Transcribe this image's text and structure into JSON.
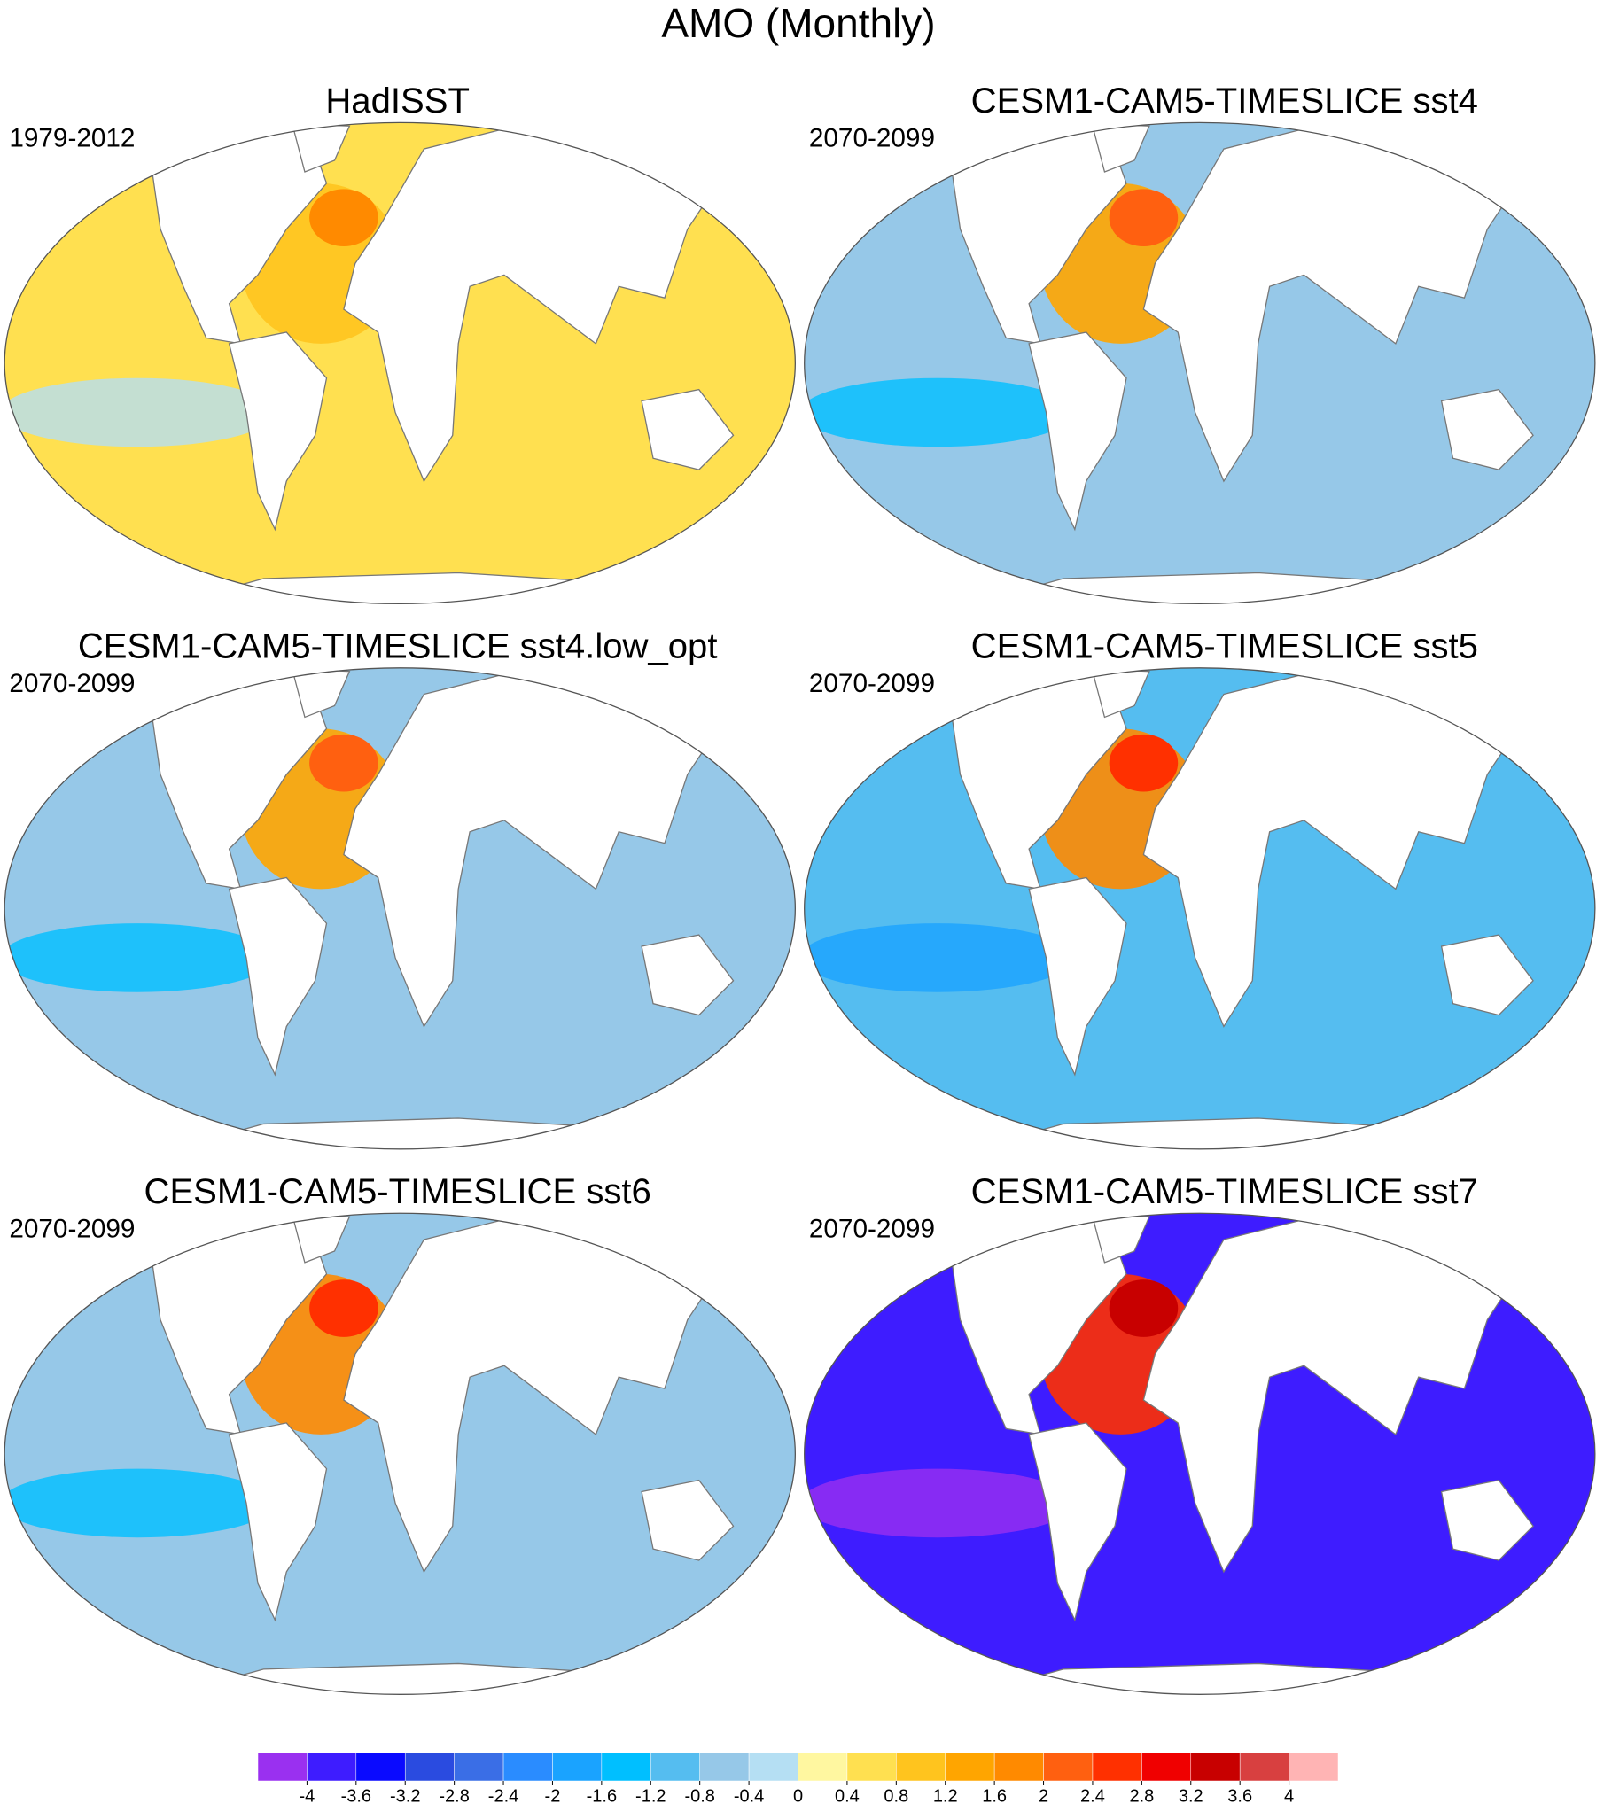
{
  "chart_data": {
    "type": "map",
    "title": "AMO (Monthly)",
    "panels": [
      {
        "title": "HadISST",
        "period": "1979-2012"
      },
      {
        "title": "CESM1-CAM5-TIMESLICE sst4",
        "period": "2070-2099"
      },
      {
        "title": "CESM1-CAM5-TIMESLICE sst4.low_opt",
        "period": "2070-2099"
      },
      {
        "title": "CESM1-CAM5-TIMESLICE sst5",
        "period": "2070-2099"
      },
      {
        "title": "CESM1-CAM5-TIMESLICE sst6",
        "period": "2070-2099"
      },
      {
        "title": "CESM1-CAM5-TIMESLICE sst7",
        "period": "2070-2099"
      }
    ],
    "colorbar": {
      "ticks": [
        -4,
        -3.6,
        -3.2,
        -2.8,
        -2.4,
        -2,
        -1.6,
        -1.2,
        -0.8,
        -0.4,
        0,
        0.4,
        0.8,
        1.2,
        1.6,
        2,
        2.4,
        2.8,
        3.2,
        3.6,
        4
      ],
      "colors": [
        "#9a30f0",
        "#3e1cff",
        "#0a0aff",
        "#2a4be0",
        "#3a6ee6",
        "#2a8cff",
        "#1aa3ff",
        "#00bfff",
        "#55bdf0",
        "#96c8e8",
        "#b5dff3",
        "#fff7a0",
        "#ffe050",
        "#ffc41e",
        "#ffa500",
        "#ff8a00",
        "#ff6010",
        "#ff3000",
        "#f00000",
        "#c80000",
        "#d84040",
        "#ffb4b4"
      ]
    }
  }
}
